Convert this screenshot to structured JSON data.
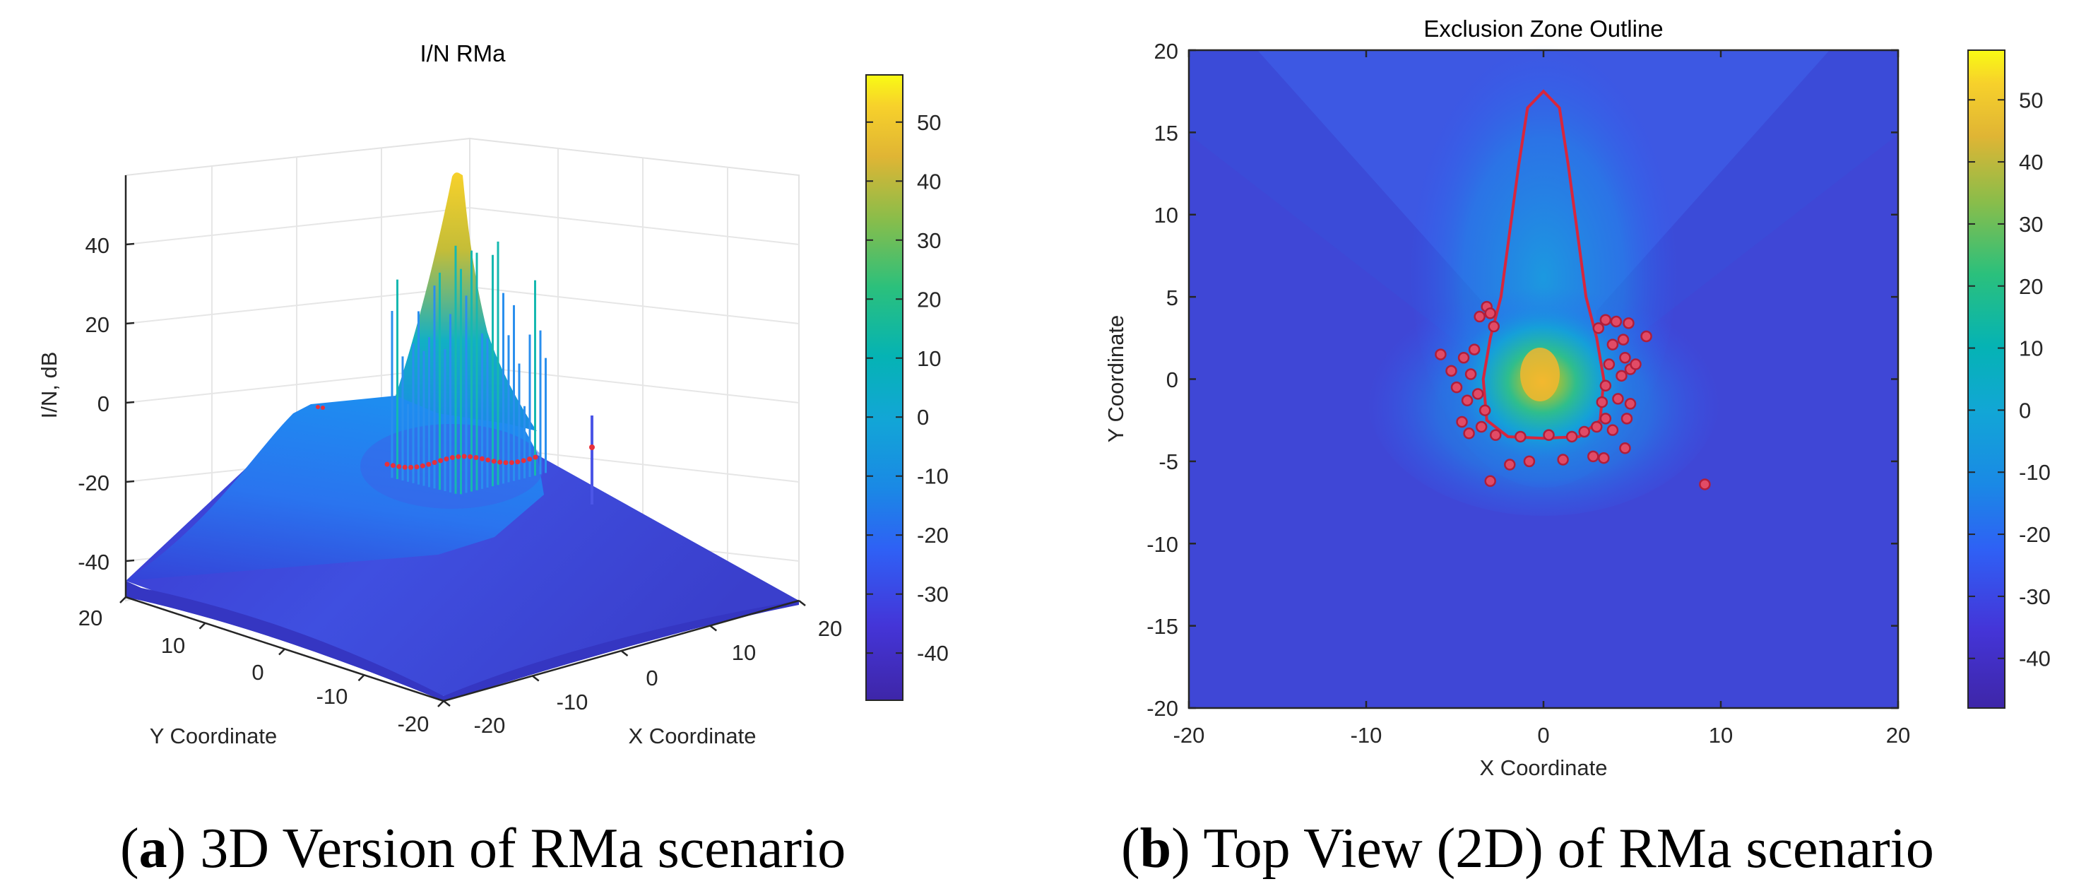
{
  "chart_data": [
    {
      "type": "surface3d",
      "title": "I/N RMa",
      "xlabel": "X Coordinate",
      "ylabel": "Y Coordinate",
      "zlabel": "I/N, dB",
      "xlim": [
        -20,
        20
      ],
      "ylim": [
        -20,
        20
      ],
      "zlim": [
        -48,
        58
      ],
      "x_ticks": [
        "-20",
        "-10",
        "0",
        "10",
        "20"
      ],
      "y_ticks": [
        "20",
        "10",
        "0",
        "-10",
        "-20"
      ],
      "z_ticks": [
        "40",
        "20",
        "0",
        "-20",
        "-40"
      ],
      "colorbar": {
        "min": -48,
        "max": 58,
        "ticks": [
          "50",
          "40",
          "30",
          "20",
          "10",
          "0",
          "-10",
          "-20",
          "-30",
          "-40"
        ]
      },
      "peak_value": 56,
      "spike_count": 30,
      "caption_label": "a",
      "caption_text": ") 3D Version of RMa scenario",
      "caption_open": "("
    },
    {
      "type": "heatmap",
      "title": "Exclusion Zone Outline",
      "xlabel": "X Coordinate",
      "ylabel": "Y Coordinate",
      "xlim": [
        -20,
        20
      ],
      "ylim": [
        -20,
        20
      ],
      "x_ticks": [
        "-20",
        "-10",
        "0",
        "10",
        "20"
      ],
      "y_ticks": [
        "20",
        "15",
        "10",
        "5",
        "0",
        "-5",
        "-10",
        "-15",
        "-20"
      ],
      "colorbar": {
        "min": -48,
        "max": 58,
        "ticks": [
          "50",
          "40",
          "30",
          "20",
          "10",
          "0",
          "-10",
          "-20",
          "-30",
          "-40"
        ]
      },
      "outline": [
        [
          0,
          17.5
        ],
        [
          -0.9,
          16.5
        ],
        [
          -1.4,
          13
        ],
        [
          -1.9,
          9
        ],
        [
          -2.4,
          5
        ],
        [
          -3,
          2.5
        ],
        [
          -3.4,
          0
        ],
        [
          -3.2,
          -2.5
        ],
        [
          -2,
          -3.5
        ],
        [
          0,
          -3.6
        ],
        [
          2,
          -3.5
        ],
        [
          3.2,
          -2.5
        ],
        [
          3.4,
          0
        ],
        [
          3,
          2.5
        ],
        [
          2.4,
          5
        ],
        [
          1.9,
          9
        ],
        [
          1.4,
          13
        ],
        [
          0.9,
          16.5
        ]
      ],
      "points": [
        [
          -3.2,
          4.4
        ],
        [
          -3.6,
          3.8
        ],
        [
          -3,
          4
        ],
        [
          -2.8,
          3.2
        ],
        [
          -3.9,
          1.8
        ],
        [
          -4.5,
          1.3
        ],
        [
          -5.8,
          1.5
        ],
        [
          -5.2,
          0.5
        ],
        [
          -4.1,
          0.3
        ],
        [
          -4.9,
          -0.5
        ],
        [
          -3.7,
          -0.9
        ],
        [
          -4.3,
          -1.3
        ],
        [
          -3.3,
          -1.9
        ],
        [
          -4.6,
          -2.6
        ],
        [
          -3.5,
          -2.9
        ],
        [
          -4.2,
          -3.3
        ],
        [
          -2.7,
          -3.4
        ],
        [
          -1.3,
          -3.5
        ],
        [
          0.3,
          -3.4
        ],
        [
          1.6,
          -3.5
        ],
        [
          2.3,
          -3.2
        ],
        [
          3,
          -2.9
        ],
        [
          3.5,
          -2.4
        ],
        [
          3.9,
          -3.1
        ],
        [
          4.7,
          -2.4
        ],
        [
          3.3,
          -1.4
        ],
        [
          4.2,
          -1.2
        ],
        [
          4.9,
          -1.5
        ],
        [
          3.5,
          -0.4
        ],
        [
          4.4,
          0.2
        ],
        [
          4.9,
          0.6
        ],
        [
          3.7,
          0.9
        ],
        [
          4.6,
          1.3
        ],
        [
          5.2,
          0.9
        ],
        [
          3.9,
          2.1
        ],
        [
          4.5,
          2.4
        ],
        [
          5.8,
          2.6
        ],
        [
          3.1,
          3.1
        ],
        [
          3.5,
          3.6
        ],
        [
          4.1,
          3.5
        ],
        [
          4.8,
          3.4
        ],
        [
          -0.8,
          -5
        ],
        [
          -1.9,
          -5.2
        ],
        [
          1.1,
          -4.9
        ],
        [
          2.8,
          -4.7
        ],
        [
          3.4,
          -4.8
        ],
        [
          4.6,
          -4.2
        ],
        [
          -3,
          -6.2
        ],
        [
          9.1,
          -6.4
        ]
      ],
      "caption_label": "b",
      "caption_text": ") Top View (2D) of RMa scenario",
      "caption_open": "("
    }
  ]
}
